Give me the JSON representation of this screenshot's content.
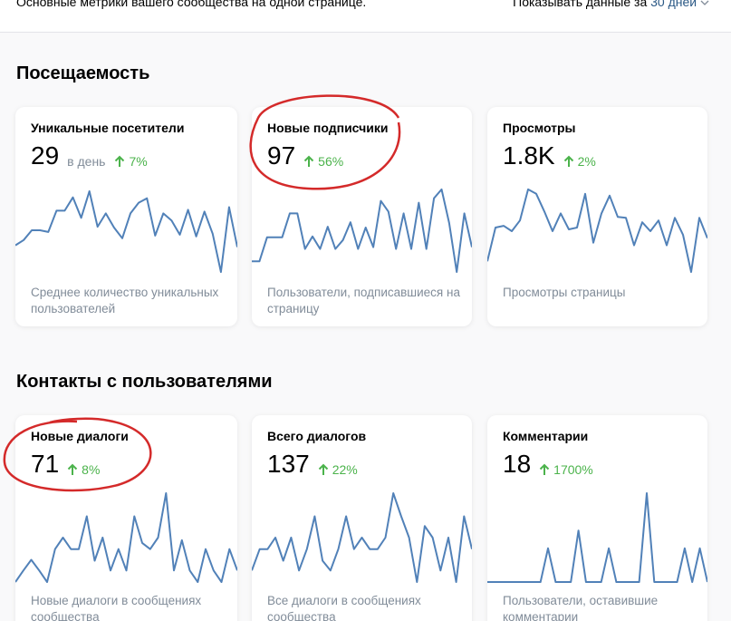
{
  "header": {
    "subtitle": "Основные метрики вашего сообщества на одной странице.",
    "period_label": "Показывать данные за",
    "period_value": "30 дней"
  },
  "sections": [
    {
      "title": "Посещаемость",
      "cards": [
        {
          "title": "Уникальные посетители",
          "value": "29",
          "unit": "в день",
          "change": "7%",
          "description": "Среднее количество уникальных пользователей",
          "sparkline": [
            32,
            38,
            49,
            49,
            47,
            71,
            71,
            86,
            63,
            93,
            53,
            68,
            52,
            40,
            68,
            80,
            85,
            43,
            68,
            60,
            44,
            72,
            42,
            70,
            45,
            2,
            75,
            30
          ]
        },
        {
          "title": "Новые подписчики",
          "value": "97",
          "change": "56%",
          "description": "Пользователи, подписавшиеся на страницу",
          "sparkline": [
            14,
            14,
            41,
            41,
            41,
            68,
            68,
            28,
            42,
            28,
            53,
            28,
            38,
            58,
            28,
            52,
            30,
            82,
            70,
            28,
            68,
            28,
            80,
            28,
            85,
            95,
            57,
            2,
            68,
            30
          ]
        },
        {
          "title": "Просмотры",
          "value": "1.8K",
          "change": "2%",
          "description": "Просмотры страницы",
          "sparkline": [
            14,
            52,
            54,
            48,
            60,
            95,
            90,
            70,
            48,
            68,
            50,
            52,
            90,
            35,
            68,
            88,
            64,
            63,
            32,
            58,
            48,
            60,
            32,
            63,
            44,
            2,
            63,
            40
          ]
        }
      ]
    },
    {
      "title": "Контакты с пользователями",
      "cards": [
        {
          "title": "Новые диалоги",
          "value": "71",
          "change": "8%",
          "description": "Новые диалоги в сообщениях сообщества",
          "sparkline": [
            0,
            13,
            25,
            13,
            0,
            37,
            50,
            37,
            37,
            74,
            24,
            50,
            13,
            37,
            13,
            74,
            44,
            37,
            50,
            100,
            13,
            47,
            13,
            0,
            37,
            13,
            0,
            37,
            13
          ]
        },
        {
          "title": "Всего диалогов",
          "value": "137",
          "change": "22%",
          "description": "Все диалоги в сообщениях сообщества",
          "sparkline": [
            13,
            37,
            37,
            50,
            24,
            50,
            13,
            37,
            74,
            24,
            13,
            37,
            74,
            37,
            50,
            37,
            37,
            50,
            100,
            74,
            50,
            0,
            63,
            50,
            13,
            50,
            0,
            74,
            37
          ]
        },
        {
          "title": "Комментарии",
          "value": "18",
          "change": "1700%",
          "description": "Пользователи, оставившие комментарии",
          "sparkline": [
            0,
            0,
            0,
            0,
            0,
            0,
            0,
            0,
            38,
            0,
            0,
            0,
            58,
            0,
            0,
            0,
            38,
            0,
            0,
            0,
            0,
            100,
            0,
            0,
            0,
            0,
            38,
            0,
            38,
            0
          ]
        }
      ]
    }
  ]
}
